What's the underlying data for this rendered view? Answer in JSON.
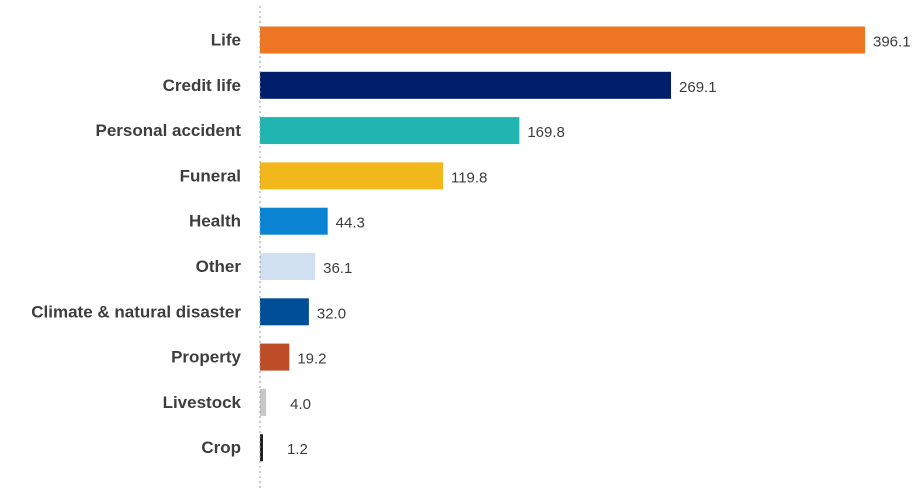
{
  "chart_data": {
    "type": "bar",
    "orientation": "horizontal",
    "categories": [
      "Life",
      "Credit life",
      "Personal accident",
      "Funeral",
      "Health",
      "Other",
      "Climate & natural disaster",
      "Property",
      "Livestock",
      "Crop"
    ],
    "values": [
      396.1,
      269.1,
      169.8,
      119.8,
      44.3,
      36.1,
      32.0,
      19.2,
      4.0,
      1.2
    ],
    "value_labels": [
      "396.1",
      "269.1",
      "169.8",
      "119.8",
      "44.3",
      "36.1",
      "32.0",
      "19.2",
      "4.0",
      "1.2"
    ],
    "colors": [
      "#ee7521",
      "#001e6a",
      "#20b5b0",
      "#f2b81b",
      "#0a83d2",
      "#d0e0f0",
      "#004f96",
      "#bc4d28",
      "#c7c7c7",
      "#222222"
    ],
    "xlim": [
      0,
      396.1
    ],
    "grid": false,
    "legend": false
  }
}
